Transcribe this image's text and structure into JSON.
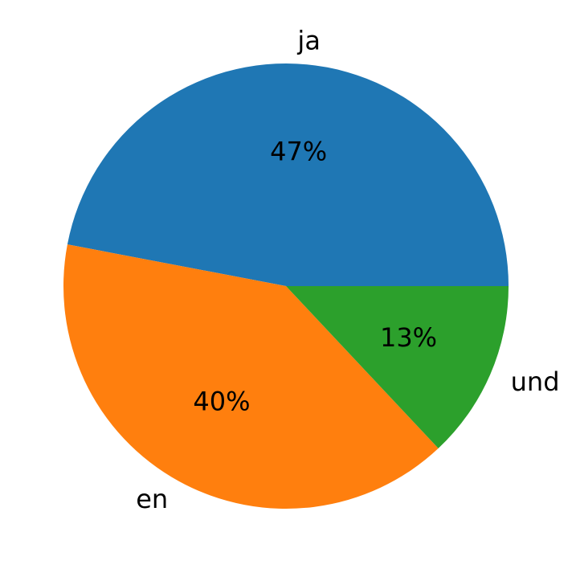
{
  "chart_data": {
    "type": "pie",
    "categories": [
      "ja",
      "en",
      "und"
    ],
    "values": [
      47,
      40,
      13
    ],
    "value_labels": [
      "47%",
      "40%",
      "13%"
    ],
    "colors": [
      "#1f77b4",
      "#ff7f0e",
      "#2ca02c"
    ],
    "start_angle_deg": 0,
    "direction": "counterclockwise"
  }
}
